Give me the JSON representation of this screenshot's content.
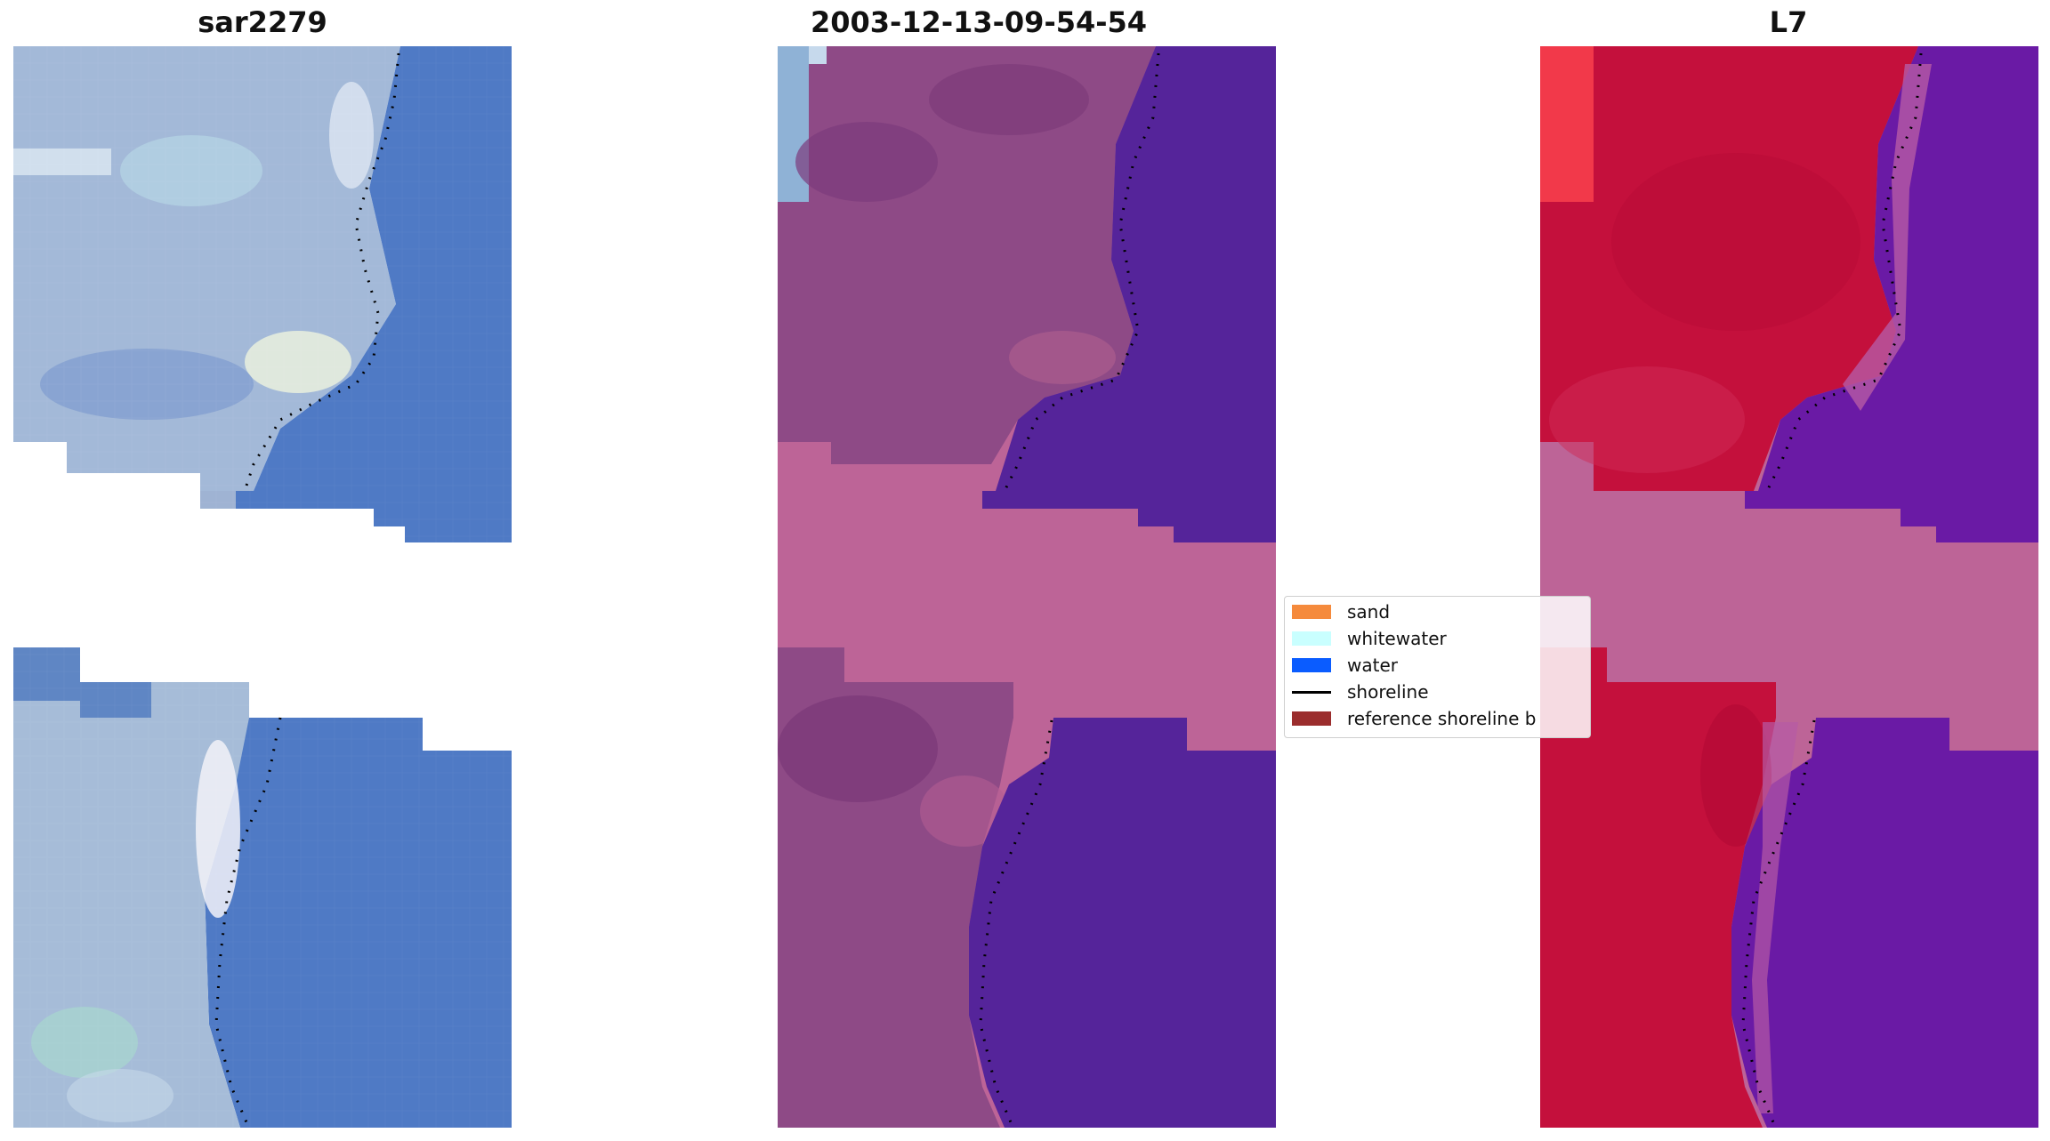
{
  "panels": [
    {
      "title": "sar2279"
    },
    {
      "title": "2003-12-13-09-54-54"
    },
    {
      "title": "L7"
    }
  ],
  "legend": {
    "items": [
      {
        "label": "sand",
        "color": "#f58a3c",
        "kind": "patch"
      },
      {
        "label": "whitewater",
        "color": "#c9ffff",
        "kind": "patch"
      },
      {
        "label": "water",
        "color": "#0a5cff",
        "kind": "patch"
      },
      {
        "label": "shoreline",
        "color": "#000000",
        "kind": "line"
      },
      {
        "label": "reference shoreline b",
        "color": "#9b2d2d",
        "kind": "patch"
      }
    ]
  },
  "colors": {
    "rgb_land": "#9fb3d3",
    "rgb_water": "#5179c2",
    "classified_land": "#8e4a86",
    "classified_water": "#55249a",
    "nodata_band": "#bd6497",
    "false_color_land": "#c4103c",
    "false_color_water": "#6a1aa5",
    "shoreline_dots": "#000000"
  }
}
